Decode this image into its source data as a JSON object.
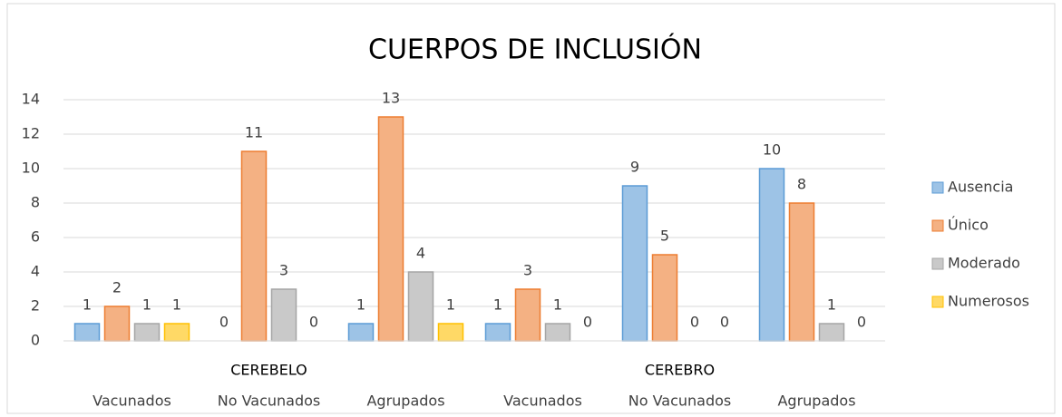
{
  "chart_data": {
    "type": "bar",
    "title": "CUERPOS DE INCLUSIÓN",
    "categories": [
      "Vacunados",
      "No Vacunados",
      "Agrupados",
      "Vacunados",
      "No Vacunados",
      "Agrupados"
    ],
    "group_labels": [
      null,
      "CEREBELO",
      null,
      null,
      "CEREBRO",
      null
    ],
    "series": [
      {
        "name": "Ausencia",
        "color": "#9dc3e6",
        "values": [
          1,
          0,
          1,
          1,
          9,
          10
        ]
      },
      {
        "name": "Único",
        "color": "#f4b183",
        "values": [
          2,
          11,
          13,
          3,
          5,
          8
        ]
      },
      {
        "name": "Moderado",
        "color": "#c9c9c9",
        "values": [
          1,
          3,
          4,
          1,
          0,
          1
        ]
      },
      {
        "name": "Numerosos",
        "color": "#ffd966",
        "values": [
          1,
          0,
          1,
          0,
          0,
          0
        ]
      }
    ],
    "ylim": [
      0,
      14
    ],
    "yticks": [
      0,
      2,
      4,
      6,
      8,
      10,
      12,
      14
    ],
    "grid": true,
    "legend": "right"
  }
}
